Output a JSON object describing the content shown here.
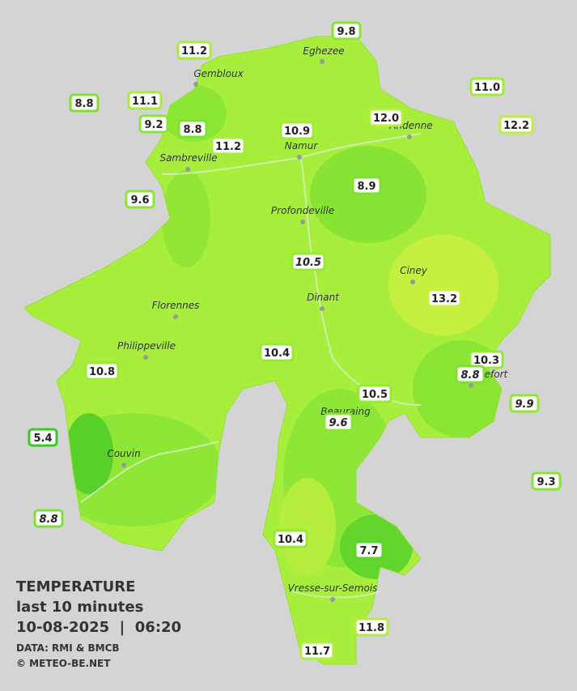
{
  "legend": {
    "title": "TEMPERATURE",
    "period": "last 10 minutes",
    "datetime": "10-08-2025  |  06:20",
    "source": "DATA: RMI & BMCB",
    "copyright": "© METEO-BE.NET"
  },
  "cities": [
    "Gembloux",
    "Eghezee",
    "Andenne",
    "Namur",
    "Sambreville",
    "Profondeville",
    "Ciney",
    "Dinant",
    "Florennes",
    "Philippeville",
    "Rochefort",
    "Beauraing",
    "Couvin",
    "Vresse-sur-Semois"
  ],
  "stations": [
    {
      "label": "11.2",
      "color": "#a6ec3a"
    },
    {
      "label": "9.8",
      "color": "#86e632"
    },
    {
      "label": "8.8",
      "color": "#7ee030"
    },
    {
      "label": "11.1",
      "color": "#a6ec3a"
    },
    {
      "label": "11.0",
      "color": "#a2ea38"
    },
    {
      "label": "12.0",
      "color": "#b6f03e"
    },
    {
      "label": "12.2",
      "color": "#baf03e"
    },
    {
      "label": "9.2",
      "color": "#86e632"
    },
    {
      "label": "8.8",
      "color": "#7ee030"
    },
    {
      "label": "10.9",
      "color": "#a0ea38"
    },
    {
      "label": "11.2",
      "color": "#a6ec3a"
    },
    {
      "label": "8.9",
      "color": "#7ee030"
    },
    {
      "label": "9.6",
      "color": "#8ce634"
    },
    {
      "label": "10.5",
      "color": "#98e836",
      "italic": true
    },
    {
      "label": "13.2",
      "color": "#ccf042"
    },
    {
      "label": "10.4",
      "color": "#98e836"
    },
    {
      "label": "10.3",
      "color": "#96e836"
    },
    {
      "label": "8.8",
      "color": "#7ee030",
      "italic": true
    },
    {
      "label": "10.8",
      "color": "#9eea38"
    },
    {
      "label": "10.5",
      "color": "#98e836"
    },
    {
      "label": "9.9",
      "color": "#90e634",
      "italic": true
    },
    {
      "label": "9.6",
      "color": "#8ce634",
      "italic": true
    },
    {
      "label": "5.4",
      "color": "#3ec828"
    },
    {
      "label": "9.3",
      "color": "#88e432"
    },
    {
      "label": "8.8",
      "color": "#7ee030",
      "italic": true
    },
    {
      "label": "10.4",
      "color": "#98e836"
    },
    {
      "label": "7.7",
      "color": "#5cd42a"
    },
    {
      "label": "11.8",
      "color": "#b0ee3c"
    },
    {
      "label": "11.7",
      "color": "#aeee3c"
    }
  ]
}
